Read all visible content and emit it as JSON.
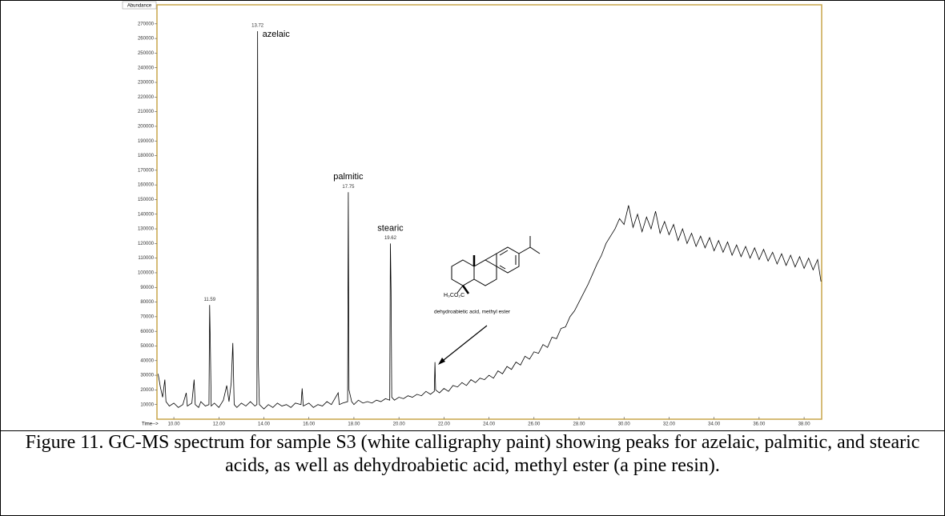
{
  "chart_data": {
    "type": "line",
    "y_label": "Abundance",
    "x_label": "Time-->",
    "xlim": [
      9.25,
      38.78
    ],
    "ylim": [
      0,
      283000
    ],
    "xticks": [
      {
        "value": 10,
        "label": "10.00"
      },
      {
        "value": 12,
        "label": "12.00"
      },
      {
        "value": 14,
        "label": "14.00"
      },
      {
        "value": 16,
        "label": "16.00"
      },
      {
        "value": 18,
        "label": "18.00"
      },
      {
        "value": 20,
        "label": "20.00"
      },
      {
        "value": 22,
        "label": "22.00"
      },
      {
        "value": 24,
        "label": "24.00"
      },
      {
        "value": 26,
        "label": "26.00"
      },
      {
        "value": 28,
        "label": "28.00"
      },
      {
        "value": 30,
        "label": "30.00"
      },
      {
        "value": 32,
        "label": "32.00"
      },
      {
        "value": 34,
        "label": "34.00"
      },
      {
        "value": 36,
        "label": "36.00"
      },
      {
        "value": 38,
        "label": "38.00"
      }
    ],
    "yticks": [
      10000,
      20000,
      30000,
      40000,
      50000,
      60000,
      70000,
      80000,
      90000,
      100000,
      110000,
      120000,
      130000,
      140000,
      150000,
      160000,
      170000,
      180000,
      190000,
      200000,
      210000,
      220000,
      230000,
      240000,
      250000,
      260000,
      270000
    ],
    "grid": false,
    "series": [
      {
        "color": "#000000",
        "x": [
          9.3,
          9.4,
          9.5,
          9.6,
          9.65,
          9.8,
          10.0,
          10.2,
          10.4,
          10.55,
          10.6,
          10.8,
          10.9,
          10.95,
          11.1,
          11.2,
          11.4,
          11.56,
          11.59,
          11.62,
          11.66,
          11.8,
          12.0,
          12.2,
          12.35,
          12.45,
          12.55,
          12.62,
          12.68,
          12.8,
          13.0,
          13.2,
          13.4,
          13.6,
          13.69,
          13.72,
          13.75,
          13.8,
          14.0,
          14.2,
          14.4,
          14.6,
          14.8,
          15.0,
          15.2,
          15.4,
          15.65,
          15.7,
          15.75,
          16.0,
          16.2,
          16.4,
          16.6,
          16.8,
          17.0,
          17.3,
          17.35,
          17.5,
          17.72,
          17.75,
          17.78,
          17.9,
          18.0,
          18.2,
          18.4,
          18.6,
          18.8,
          19.0,
          19.2,
          19.4,
          19.59,
          19.62,
          19.65,
          19.68,
          19.8,
          20.0,
          20.2,
          20.4,
          20.6,
          20.8,
          21.0,
          21.2,
          21.4,
          21.57,
          21.6,
          21.63,
          21.8,
          22.0,
          22.2,
          22.4,
          22.6,
          22.8,
          23.0,
          23.2,
          23.4,
          23.6,
          23.8,
          24.0,
          24.2,
          24.4,
          24.6,
          24.8,
          25.0,
          25.2,
          25.4,
          25.6,
          25.8,
          26.0,
          26.2,
          26.4,
          26.6,
          26.8,
          27.0,
          27.2,
          27.4,
          27.6,
          27.8,
          28.0,
          28.2,
          28.4,
          28.6,
          28.8,
          29.0,
          29.2,
          29.4,
          29.6,
          29.8,
          30.0,
          30.2,
          30.4,
          30.6,
          30.8,
          31.0,
          31.2,
          31.4,
          31.6,
          31.8,
          32.0,
          32.2,
          32.4,
          32.6,
          32.8,
          33.0,
          33.2,
          33.4,
          33.6,
          33.8,
          34.0,
          34.2,
          34.4,
          34.6,
          34.8,
          35.0,
          35.2,
          35.4,
          35.6,
          35.8,
          36.0,
          36.2,
          36.4,
          36.6,
          36.8,
          37.0,
          37.2,
          37.4,
          37.6,
          37.8,
          38.0,
          38.2,
          38.4,
          38.6,
          38.75
        ],
        "values": [
          31000,
          22000,
          15000,
          27000,
          12000,
          9000,
          11000,
          8000,
          10000,
          18000,
          9000,
          11000,
          27000,
          10000,
          8000,
          12000,
          9000,
          10000,
          78000,
          52000,
          9000,
          11000,
          8000,
          13000,
          23000,
          12000,
          25000,
          52000,
          10000,
          8000,
          11000,
          9000,
          12000,
          9000,
          10000,
          265000,
          40000,
          10000,
          7000,
          10000,
          8000,
          11000,
          9000,
          10000,
          8000,
          11000,
          10000,
          21000,
          9000,
          11000,
          8000,
          10000,
          9000,
          12000,
          10000,
          18000,
          10000,
          11000,
          12000,
          155000,
          20000,
          12000,
          10000,
          13000,
          11000,
          12000,
          11000,
          13000,
          12000,
          14000,
          13000,
          120000,
          88000,
          15000,
          13000,
          15000,
          14000,
          16000,
          15000,
          17000,
          16000,
          19000,
          17000,
          19000,
          39000,
          20000,
          18000,
          21000,
          19000,
          23000,
          22000,
          25000,
          23000,
          27000,
          25000,
          28000,
          27000,
          30000,
          28000,
          33000,
          31000,
          36000,
          34000,
          39000,
          37000,
          43000,
          41000,
          46000,
          45000,
          51000,
          49000,
          56000,
          55000,
          62000,
          63000,
          70000,
          74000,
          80000,
          86000,
          92000,
          99000,
          106000,
          112000,
          120000,
          125000,
          130000,
          137000,
          133000,
          146000,
          131000,
          140000,
          128000,
          138000,
          130000,
          142000,
          127000,
          135000,
          126000,
          133000,
          122000,
          130000,
          120000,
          127000,
          118000,
          125000,
          117000,
          124000,
          115000,
          122000,
          114000,
          121000,
          112000,
          119000,
          111000,
          118000,
          110000,
          117000,
          109000,
          116000,
          108000,
          114000,
          106000,
          113000,
          105000,
          112000,
          104000,
          111000,
          103000,
          110000,
          102000,
          109000,
          94000
        ]
      }
    ],
    "peaks": [
      {
        "time": 11.59
      },
      {
        "time": 13.72,
        "name": "azelaic"
      },
      {
        "time": 17.75,
        "name": "palmitic"
      },
      {
        "time": 19.62,
        "name": "stearic"
      }
    ],
    "structure_label": "H₃CO₂C",
    "structure_name": "dehydroabietic acid, methyl ester"
  },
  "caption": "Figure 11. GC-MS spectrum for sample S3 (white calligraphy paint) showing peaks for azelaic, palmitic, and stearic acids, as well as dehydroabietic acid, methyl ester (a pine resin)."
}
